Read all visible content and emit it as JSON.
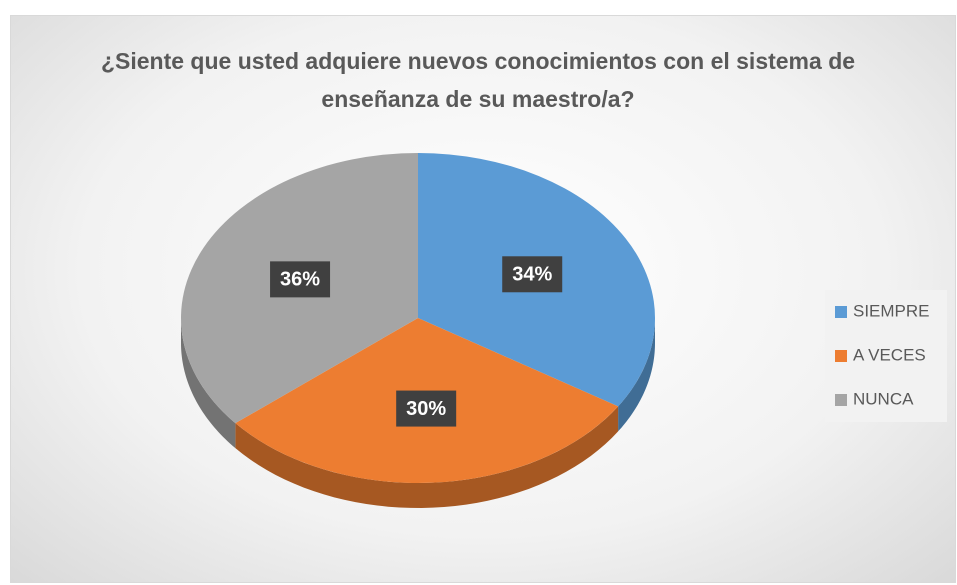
{
  "chart_data": {
    "type": "pie",
    "title": "¿Siente que usted adquiere nuevos conocimientos con el sistema de enseñanza de su maestro/a?",
    "categories": [
      "SIEMPRE",
      "A VECES",
      "NUNCA"
    ],
    "values": [
      34,
      30,
      36
    ],
    "value_labels": [
      "34%",
      "30%",
      "36%"
    ],
    "colors": [
      "#5b9bd5",
      "#ed7d31",
      "#a5a5a5"
    ],
    "legend": "right"
  }
}
